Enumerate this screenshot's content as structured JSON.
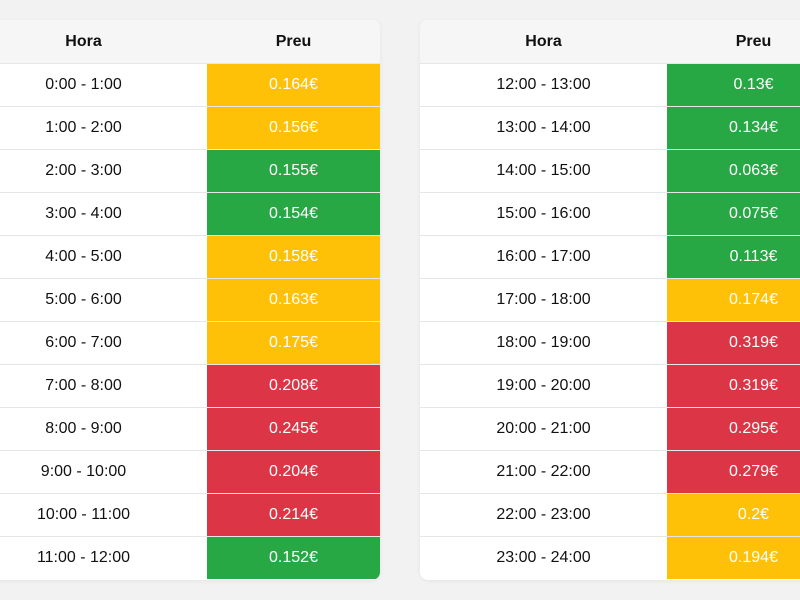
{
  "colors": {
    "low": "#28a745",
    "mid": "#ffc107",
    "high": "#dc3545"
  },
  "tables": [
    {
      "headers": {
        "hour": "Hora",
        "price": "Preu"
      },
      "rows": [
        {
          "hour": "0:00 - 1:00",
          "price": "0.164€",
          "level": "mid"
        },
        {
          "hour": "1:00 - 2:00",
          "price": "0.156€",
          "level": "mid"
        },
        {
          "hour": "2:00 - 3:00",
          "price": "0.155€",
          "level": "low"
        },
        {
          "hour": "3:00 - 4:00",
          "price": "0.154€",
          "level": "low"
        },
        {
          "hour": "4:00 - 5:00",
          "price": "0.158€",
          "level": "mid"
        },
        {
          "hour": "5:00 - 6:00",
          "price": "0.163€",
          "level": "mid"
        },
        {
          "hour": "6:00 - 7:00",
          "price": "0.175€",
          "level": "mid"
        },
        {
          "hour": "7:00 - 8:00",
          "price": "0.208€",
          "level": "high"
        },
        {
          "hour": "8:00 - 9:00",
          "price": "0.245€",
          "level": "high"
        },
        {
          "hour": "9:00 - 10:00",
          "price": "0.204€",
          "level": "high"
        },
        {
          "hour": "10:00 - 11:00",
          "price": "0.214€",
          "level": "high"
        },
        {
          "hour": "11:00 - 12:00",
          "price": "0.152€",
          "level": "low"
        }
      ]
    },
    {
      "headers": {
        "hour": "Hora",
        "price": "Preu"
      },
      "rows": [
        {
          "hour": "12:00 - 13:00",
          "price": "0.13€",
          "level": "low"
        },
        {
          "hour": "13:00 - 14:00",
          "price": "0.134€",
          "level": "low"
        },
        {
          "hour": "14:00 - 15:00",
          "price": "0.063€",
          "level": "low"
        },
        {
          "hour": "15:00 - 16:00",
          "price": "0.075€",
          "level": "low"
        },
        {
          "hour": "16:00 - 17:00",
          "price": "0.113€",
          "level": "low"
        },
        {
          "hour": "17:00 - 18:00",
          "price": "0.174€",
          "level": "mid"
        },
        {
          "hour": "18:00 - 19:00",
          "price": "0.319€",
          "level": "high"
        },
        {
          "hour": "19:00 - 20:00",
          "price": "0.319€",
          "level": "high"
        },
        {
          "hour": "20:00 - 21:00",
          "price": "0.295€",
          "level": "high"
        },
        {
          "hour": "21:00 - 22:00",
          "price": "0.279€",
          "level": "high"
        },
        {
          "hour": "22:00 - 23:00",
          "price": "0.2€",
          "level": "mid"
        },
        {
          "hour": "23:00 - 24:00",
          "price": "0.194€",
          "level": "mid"
        }
      ]
    }
  ]
}
